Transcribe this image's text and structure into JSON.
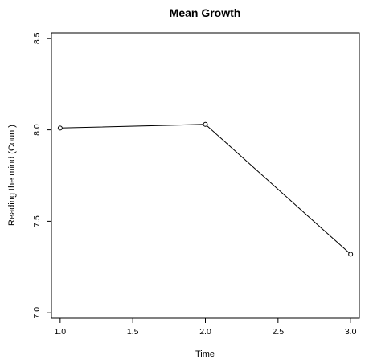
{
  "chart_data": {
    "type": "line",
    "title": "Mean Growth",
    "xlabel": "Time",
    "ylabel": "Reading the mind (Count)",
    "xlim": [
      0.94,
      3.06
    ],
    "ylim": [
      6.97,
      8.53
    ],
    "xticks": [
      "1.0",
      "1.5",
      "2.0",
      "2.5",
      "3.0"
    ],
    "yticks": [
      "7.0",
      "7.5",
      "8.0",
      "8.5"
    ],
    "grid": false,
    "markers": "open-circle",
    "series": [
      {
        "x": [
          1.0,
          2.0,
          3.0
        ],
        "y": [
          8.01,
          8.03,
          7.32
        ]
      }
    ]
  }
}
